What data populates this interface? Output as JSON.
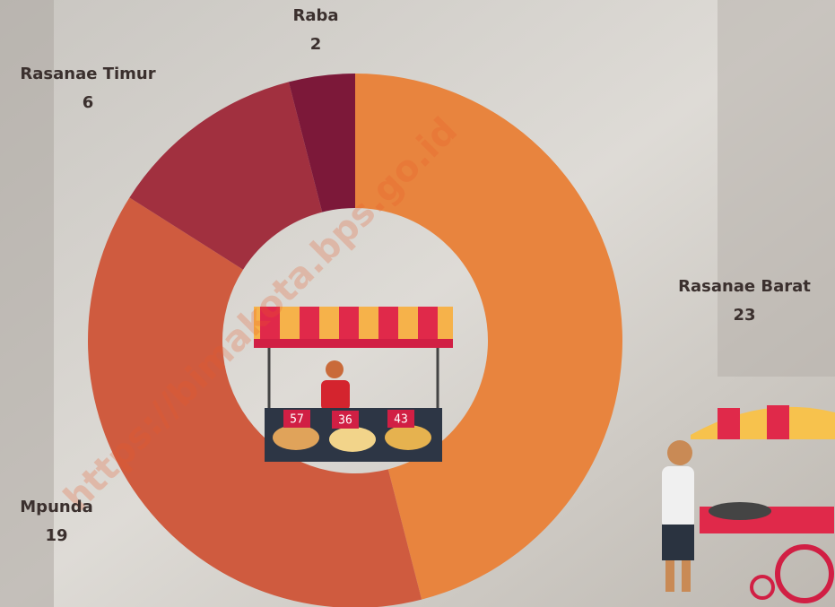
{
  "chart_data": {
    "type": "donut",
    "categories": [
      "Rasanae Barat",
      "Mpunda",
      "Rasanae Timur",
      "Raba"
    ],
    "values": [
      23,
      19,
      6,
      2
    ],
    "colors": [
      "#e8843e",
      "#cf5b3f",
      "#a1303f",
      "#7c1839"
    ],
    "watermark": "https://bimakota.bps.go.id",
    "annotations": [
      "57",
      "36",
      "43"
    ]
  }
}
